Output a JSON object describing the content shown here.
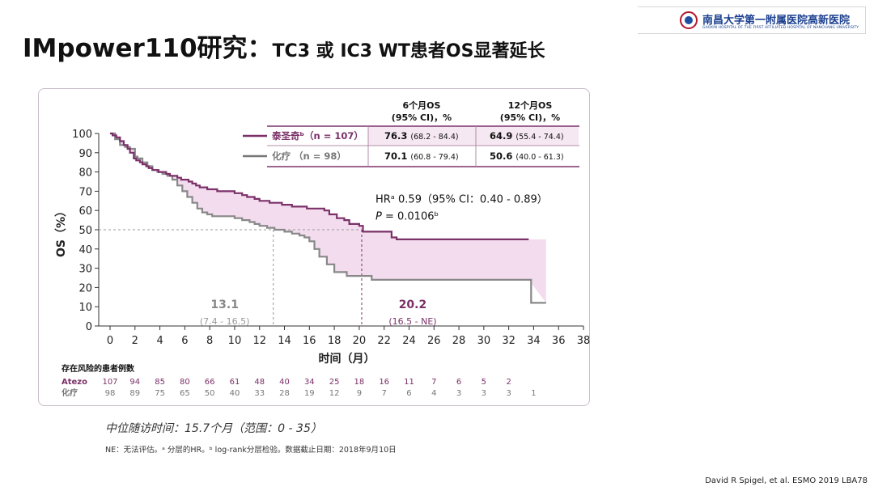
{
  "title": {
    "main": "IMpower110研究：",
    "sub": "TC3 或 IC3 WT患者OS显著延长"
  },
  "logo": {
    "name_cn": "南昌大学第一附属医院高新医院",
    "name_en": "GAOXIN HOSPITAL OF THE FIRST AFFILIATED HOSPITAL OF NANCHANG UNIVERSITY"
  },
  "chart_data": {
    "type": "line",
    "ylabel": "OS（%）",
    "xlabel": "时间（月）",
    "xlim": [
      0,
      38
    ],
    "ylim": [
      0,
      100
    ],
    "x_ticks": [
      0,
      2,
      4,
      6,
      8,
      10,
      12,
      14,
      16,
      18,
      20,
      22,
      24,
      26,
      28,
      30,
      32,
      34,
      36,
      38
    ],
    "y_ticks": [
      0,
      10,
      20,
      30,
      40,
      50,
      60,
      70,
      80,
      90,
      100
    ],
    "series": [
      {
        "name": "泰圣奇",
        "color": "#7b3168",
        "x": [
          0,
          0.2,
          0.5,
          0.8,
          1.1,
          1.4,
          1.6,
          1.9,
          2.1,
          2.4,
          2.6,
          2.9,
          3.1,
          3.4,
          3.6,
          3.9,
          4.2,
          4.5,
          4.8,
          5.1,
          5.4,
          5.7,
          6.0,
          6.3,
          6.6,
          6.9,
          7.2,
          7.5,
          7.8,
          8.2,
          8.6,
          9.2,
          10.0,
          10.6,
          11.0,
          11.6,
          12.0,
          12.8,
          13.8,
          14.6,
          15.2,
          15.8,
          16.6,
          17.2,
          17.6,
          18.2,
          18.8,
          19.2,
          20.0,
          20.3,
          22.6,
          23.0,
          27.0,
          30.0,
          33.6
        ],
        "y": [
          100,
          99,
          98,
          96,
          94,
          92,
          90,
          87,
          86,
          85,
          84,
          83,
          82,
          81,
          81,
          80,
          80,
          79,
          78,
          78,
          77,
          76,
          76,
          75,
          74,
          73,
          72,
          72,
          71,
          71,
          70,
          70,
          69,
          68,
          67,
          66,
          65,
          64,
          63,
          62,
          62,
          61,
          61,
          60,
          58,
          56,
          55,
          53,
          52,
          49,
          46,
          45,
          45,
          45,
          45
        ]
      },
      {
        "name": "化疗",
        "color": "#888888",
        "x": [
          0,
          0.4,
          0.8,
          1.2,
          1.6,
          2.0,
          2.2,
          2.6,
          3.0,
          3.4,
          3.8,
          4.2,
          4.6,
          5.0,
          5.4,
          5.8,
          6.2,
          6.6,
          7.0,
          7.4,
          7.8,
          8.2,
          9.0,
          10.0,
          10.6,
          11.2,
          11.6,
          12.0,
          12.6,
          13.2,
          14.0,
          14.6,
          15.2,
          15.6,
          16.0,
          16.4,
          16.8,
          17.4,
          18.0,
          19.0,
          21.0,
          24.0,
          28.0,
          33.4,
          33.8,
          35.0
        ],
        "y": [
          100,
          97,
          94,
          93,
          92,
          88,
          87,
          85,
          83,
          81,
          80,
          79,
          78,
          76,
          73,
          70,
          67,
          64,
          61,
          59,
          58,
          57,
          57,
          56,
          55,
          54,
          53,
          52,
          51,
          50,
          49,
          48,
          47,
          46,
          44,
          40,
          36,
          32,
          28,
          26,
          24,
          24,
          24,
          24,
          12,
          12
        ]
      }
    ],
    "annotations": {
      "median_tx": {
        "value": "20.2",
        "ci": "(16.5 - NE)",
        "x": 20.2
      },
      "median_ctrl": {
        "value": "13.1",
        "ci": "(7.4 - 16.5)",
        "x": 13.1
      },
      "median_line_y": 50,
      "hr": "HRᵃ 0.59（95% CI：0.40 - 0.89）",
      "p_label": "P",
      "p_value": " = 0.0106ᵇ"
    },
    "table": {
      "headers": [
        "6个月OS\n(95% CI)，%",
        "12个月OS\n(95% CI)，%"
      ],
      "rows": [
        {
          "label": "泰圣奇ᵇ（n = 107）",
          "os6": "76.3",
          "os6_ci": "(68.2 - 84.4)",
          "os12": "64.9",
          "os12_ci": "(55.4 - 74.4)"
        },
        {
          "label": "化疗  （n = 98）",
          "os6": "70.1",
          "os6_ci": "(60.8 - 79.4)",
          "os12": "50.6",
          "os12_ci": "(40.0 - 61.3)"
        }
      ]
    },
    "at_risk": {
      "title": "存在风险的患者例数",
      "times": [
        0,
        2,
        4,
        6,
        8,
        10,
        12,
        14,
        16,
        18,
        20,
        22,
        24,
        26,
        28,
        30,
        32,
        34
      ],
      "rows": [
        {
          "label": "Atezo",
          "counts": [
            "107",
            "94",
            "85",
            "80",
            "66",
            "61",
            "48",
            "40",
            "34",
            "25",
            "18",
            "16",
            "11",
            "7",
            "6",
            "5",
            "2"
          ]
        },
        {
          "label": "化疗",
          "counts": [
            "98",
            "89",
            "75",
            "65",
            "50",
            "40",
            "33",
            "28",
            "19",
            "12",
            "9",
            "7",
            "6",
            "4",
            "3",
            "3",
            "3",
            "1"
          ]
        }
      ]
    }
  },
  "footer_note": "中位随访时间：15.7个月（范围：0 - 35）",
  "ne_note": "NE：无法评估。ᵃ 分层的HR。ᵇ log-rank分层检验。数据截止日期：2018年9月10日",
  "citation": "David R Spigel, et al.  ESMO 2019 LBA78"
}
